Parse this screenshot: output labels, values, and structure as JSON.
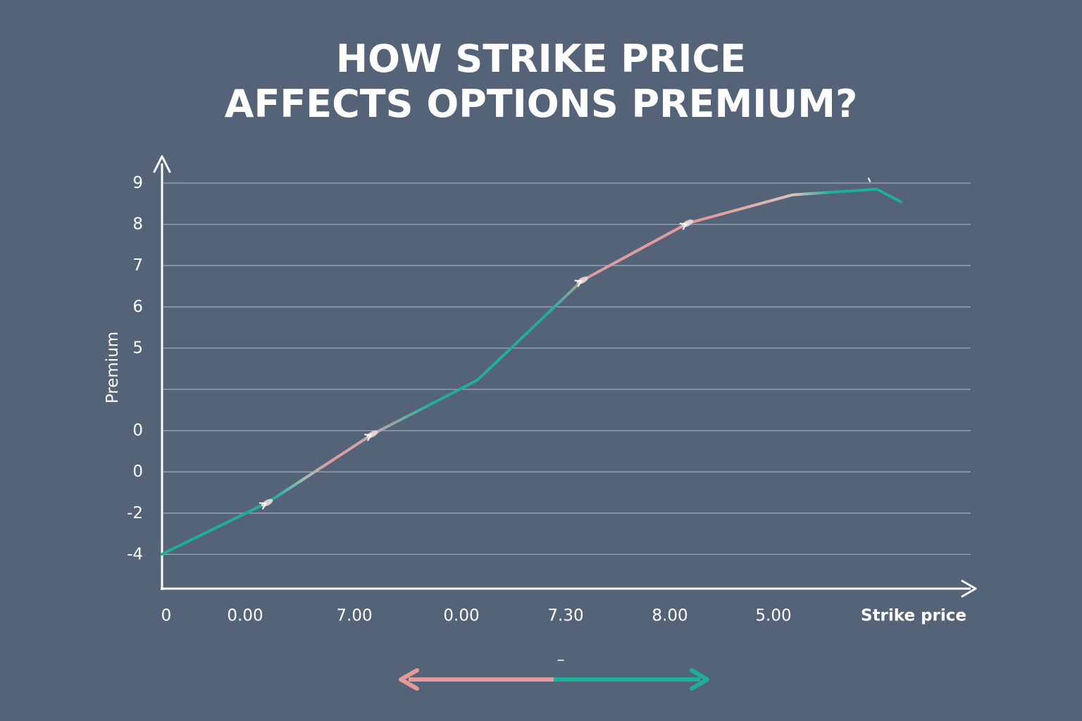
{
  "title": {
    "line1": "HOW STRIKE PRICE",
    "line2": "AFFECTS OPTIONS PREMIUM?"
  },
  "colors": {
    "background": "#556379",
    "teal": "#1fae96",
    "pink": "#e39a9c",
    "grid": "#a9b2c0",
    "axis": "#ffffff"
  },
  "chart_data": {
    "type": "line",
    "title": "HOW STRIKE PRICE AFFECTS OPTIONS PREMIUM?",
    "xlabel": "Strike price",
    "ylabel": "Premium",
    "grid": true,
    "x_tick_labels": [
      "0",
      "0.00",
      "7.00",
      "0.00",
      "7.30",
      "8.00",
      "5.00"
    ],
    "y_tick_labels": [
      "9",
      "8",
      "7",
      "6",
      "5",
      "",
      "0",
      "0",
      "-2",
      "-4"
    ],
    "series": [
      {
        "x": [
          0,
          1,
          2,
          3,
          4,
          5,
          6,
          6.8
        ],
        "y": [
          -4,
          -2.2,
          0.2,
          2.1,
          5.6,
          7.6,
          8.6,
          8.8
        ]
      }
    ],
    "markers": [
      {
        "x": 1,
        "y": -2.2
      },
      {
        "x": 2,
        "y": 0.2
      },
      {
        "x": 4,
        "y": 5.6
      },
      {
        "x": 5,
        "y": 7.6
      }
    ],
    "legend": {
      "symbol": "–"
    }
  }
}
